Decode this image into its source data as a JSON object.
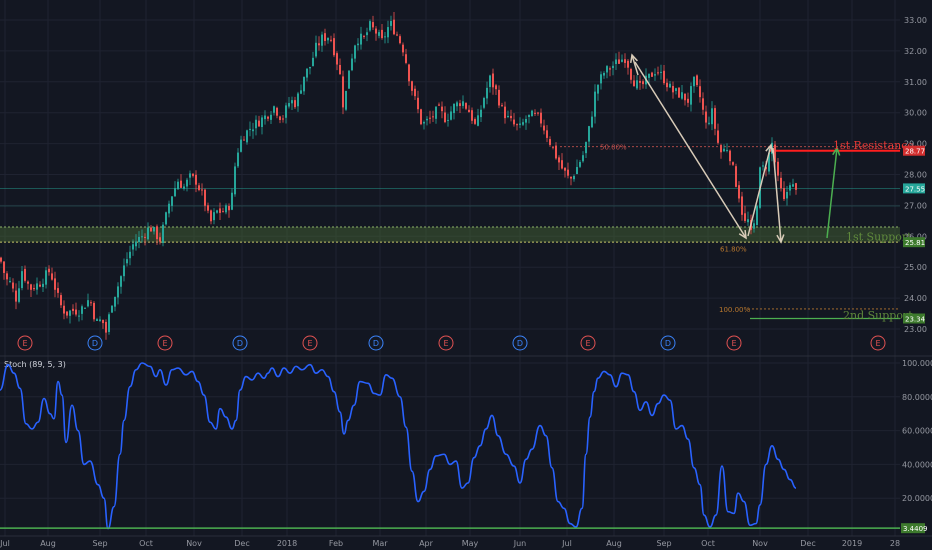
{
  "chart_data": [
    {
      "type": "candlestick",
      "ylim": [
        22.7,
        33.4
      ],
      "y_ticks": [
        "33.00",
        "32.00",
        "31.00",
        "30.00",
        "29.00",
        "28.00",
        "27.00",
        "26.00",
        "25.00",
        "24.00",
        "23.00"
      ],
      "x_labels": [
        "Jul",
        "Aug",
        "Sep",
        "Oct",
        "Nov",
        "Dec",
        "2018",
        "Feb",
        "Mar",
        "Apr",
        "May",
        "Jun",
        "Jul",
        "Aug",
        "Sep",
        "Oct",
        "Nov",
        "Dec",
        "2019",
        "28"
      ],
      "colors": {
        "up": "#26a69a",
        "down": "#ef5350",
        "background": "#131722",
        "grid": "#1f2331"
      },
      "price_anchors": [
        [
          0,
          25.3
        ],
        [
          6,
          24.6
        ],
        [
          10,
          24.5
        ],
        [
          16,
          24.0
        ],
        [
          22,
          24.9
        ],
        [
          30,
          24.3
        ],
        [
          40,
          24.5
        ],
        [
          50,
          24.9
        ],
        [
          60,
          23.8
        ],
        [
          66,
          23.5
        ],
        [
          72,
          23.6
        ],
        [
          80,
          23.6
        ],
        [
          90,
          24.0
        ],
        [
          96,
          23.2
        ],
        [
          102,
          23.3
        ],
        [
          106,
          22.9
        ],
        [
          112,
          23.9
        ],
        [
          118,
          24.4
        ],
        [
          126,
          25.2
        ],
        [
          134,
          25.8
        ],
        [
          142,
          26.0
        ],
        [
          150,
          26.3
        ],
        [
          160,
          25.9
        ],
        [
          165,
          26.5
        ],
        [
          170,
          27.2
        ],
        [
          178,
          27.8
        ],
        [
          184,
          27.6
        ],
        [
          190,
          27.9
        ],
        [
          196,
          27.8
        ],
        [
          204,
          27.2
        ],
        [
          210,
          26.4
        ],
        [
          216,
          26.8
        ],
        [
          222,
          26.8
        ],
        [
          228,
          26.9
        ],
        [
          232,
          27.3
        ],
        [
          236,
          28.6
        ],
        [
          242,
          29.2
        ],
        [
          250,
          29.5
        ],
        [
          258,
          29.7
        ],
        [
          266,
          29.9
        ],
        [
          274,
          30.2
        ],
        [
          282,
          29.8
        ],
        [
          290,
          30.4
        ],
        [
          296,
          30.3
        ],
        [
          304,
          31.2
        ],
        [
          310,
          31.5
        ],
        [
          316,
          32.1
        ],
        [
          322,
          32.4
        ],
        [
          330,
          32.5
        ],
        [
          336,
          31.8
        ],
        [
          340,
          31.2
        ],
        [
          344,
          30.0
        ],
        [
          348,
          31.3
        ],
        [
          356,
          32.4
        ],
        [
          364,
          32.4
        ],
        [
          370,
          32.8
        ],
        [
          376,
          32.6
        ],
        [
          382,
          32.3
        ],
        [
          390,
          32.9
        ],
        [
          396,
          32.6
        ],
        [
          404,
          32.0
        ],
        [
          410,
          31.0
        ],
        [
          416,
          30.3
        ],
        [
          422,
          29.6
        ],
        [
          430,
          29.8
        ],
        [
          438,
          30.1
        ],
        [
          446,
          29.8
        ],
        [
          454,
          30.2
        ],
        [
          462,
          30.4
        ],
        [
          470,
          30.0
        ],
        [
          476,
          29.5
        ],
        [
          484,
          30.5
        ],
        [
          490,
          31.1
        ],
        [
          496,
          30.7
        ],
        [
          502,
          30.1
        ],
        [
          508,
          29.8
        ],
        [
          514,
          29.6
        ],
        [
          520,
          29.5
        ],
        [
          526,
          29.8
        ],
        [
          532,
          29.9
        ],
        [
          540,
          29.8
        ],
        [
          548,
          29.2
        ],
        [
          556,
          28.6
        ],
        [
          562,
          28.2
        ],
        [
          570,
          27.8
        ],
        [
          578,
          28.3
        ],
        [
          584,
          28.7
        ],
        [
          590,
          29.6
        ],
        [
          596,
          30.8
        ],
        [
          604,
          31.3
        ],
        [
          612,
          31.5
        ],
        [
          620,
          31.7
        ],
        [
          626,
          31.8
        ],
        [
          632,
          31.1
        ],
        [
          640,
          30.8
        ],
        [
          648,
          31.1
        ],
        [
          656,
          31.4
        ],
        [
          664,
          31.1
        ],
        [
          672,
          30.7
        ],
        [
          680,
          30.6
        ],
        [
          688,
          30.4
        ],
        [
          694,
          31.0
        ],
        [
          700,
          30.5
        ],
        [
          706,
          29.6
        ],
        [
          712,
          30.0
        ],
        [
          720,
          28.7
        ],
        [
          728,
          28.9
        ],
        [
          734,
          28.0
        ],
        [
          740,
          27.2
        ],
        [
          744,
          26.4
        ],
        [
          748,
          26.5
        ],
        [
          752,
          25.9
        ],
        [
          756,
          26.8
        ],
        [
          760,
          28.1
        ],
        [
          766,
          28.3
        ],
        [
          772,
          29.0
        ],
        [
          778,
          27.8
        ],
        [
          784,
          27.1
        ],
        [
          790,
          27.8
        ],
        [
          796,
          27.4
        ]
      ],
      "stoch_ylim": [
        0,
        100
      ],
      "stoch_ticks": [
        "100.0000",
        "80.0000",
        "60.0000",
        "40.0000",
        "20.0000"
      ],
      "stoch_anchors": [
        [
          0,
          84
        ],
        [
          8,
          99
        ],
        [
          14,
          94
        ],
        [
          20,
          85
        ],
        [
          26,
          64
        ],
        [
          32,
          61
        ],
        [
          38,
          65
        ],
        [
          44,
          79
        ],
        [
          50,
          70
        ],
        [
          54,
          67
        ],
        [
          58,
          89
        ],
        [
          62,
          81
        ],
        [
          66,
          53
        ],
        [
          72,
          75
        ],
        [
          78,
          60
        ],
        [
          84,
          40
        ],
        [
          90,
          42
        ],
        [
          98,
          28
        ],
        [
          104,
          20
        ],
        [
          108,
          2
        ],
        [
          114,
          15
        ],
        [
          120,
          46
        ],
        [
          124,
          66
        ],
        [
          130,
          86
        ],
        [
          136,
          96
        ],
        [
          142,
          100
        ],
        [
          150,
          98
        ],
        [
          156,
          92
        ],
        [
          160,
          96
        ],
        [
          166,
          87
        ],
        [
          172,
          96
        ],
        [
          178,
          97
        ],
        [
          186,
          93
        ],
        [
          192,
          95
        ],
        [
          198,
          89
        ],
        [
          204,
          81
        ],
        [
          210,
          65
        ],
        [
          216,
          61
        ],
        [
          220,
          73
        ],
        [
          226,
          68
        ],
        [
          232,
          61
        ],
        [
          236,
          66
        ],
        [
          240,
          84
        ],
        [
          246,
          92
        ],
        [
          252,
          90
        ],
        [
          258,
          94
        ],
        [
          264,
          91
        ],
        [
          268,
          94
        ],
        [
          272,
          97
        ],
        [
          278,
          92
        ],
        [
          284,
          97
        ],
        [
          290,
          94
        ],
        [
          296,
          98
        ],
        [
          302,
          96
        ],
        [
          310,
          99
        ],
        [
          316,
          94
        ],
        [
          322,
          96
        ],
        [
          328,
          92
        ],
        [
          334,
          83
        ],
        [
          340,
          71
        ],
        [
          344,
          58
        ],
        [
          348,
          66
        ],
        [
          354,
          75
        ],
        [
          360,
          89
        ],
        [
          368,
          88
        ],
        [
          374,
          82
        ],
        [
          380,
          81
        ],
        [
          386,
          93
        ],
        [
          392,
          91
        ],
        [
          400,
          80
        ],
        [
          406,
          62
        ],
        [
          412,
          36
        ],
        [
          418,
          18
        ],
        [
          424,
          24
        ],
        [
          430,
          37
        ],
        [
          436,
          45
        ],
        [
          444,
          46
        ],
        [
          450,
          40
        ],
        [
          456,
          42
        ],
        [
          462,
          26
        ],
        [
          468,
          29
        ],
        [
          474,
          44
        ],
        [
          480,
          51
        ],
        [
          486,
          61
        ],
        [
          492,
          69
        ],
        [
          498,
          57
        ],
        [
          506,
          46
        ],
        [
          514,
          39
        ],
        [
          520,
          29
        ],
        [
          526,
          43
        ],
        [
          532,
          49
        ],
        [
          540,
          63
        ],
        [
          546,
          57
        ],
        [
          552,
          38
        ],
        [
          558,
          18
        ],
        [
          564,
          14
        ],
        [
          570,
          5
        ],
        [
          576,
          3
        ],
        [
          582,
          14
        ],
        [
          586,
          46
        ],
        [
          590,
          68
        ],
        [
          594,
          83
        ],
        [
          598,
          91
        ],
        [
          604,
          95
        ],
        [
          610,
          93
        ],
        [
          616,
          86
        ],
        [
          622,
          94
        ],
        [
          628,
          93
        ],
        [
          634,
          83
        ],
        [
          640,
          72
        ],
        [
          646,
          77
        ],
        [
          652,
          69
        ],
        [
          658,
          76
        ],
        [
          664,
          81
        ],
        [
          670,
          78
        ],
        [
          676,
          61
        ],
        [
          682,
          63
        ],
        [
          688,
          55
        ],
        [
          694,
          38
        ],
        [
          700,
          28
        ],
        [
          704,
          10
        ],
        [
          710,
          3
        ],
        [
          716,
          10
        ],
        [
          722,
          39
        ],
        [
          728,
          12
        ],
        [
          734,
          11
        ],
        [
          738,
          23
        ],
        [
          744,
          18
        ],
        [
          750,
          4
        ],
        [
          756,
          5
        ],
        [
          760,
          16
        ],
        [
          766,
          40
        ],
        [
          772,
          51
        ],
        [
          778,
          43
        ],
        [
          784,
          37
        ],
        [
          790,
          31
        ],
        [
          796,
          26
        ]
      ]
    }
  ],
  "annotations": {
    "first_resistance": "1st Resistance",
    "first_support": "1st Support",
    "second_support": "2nd Support",
    "fib_50": "50.00%",
    "fib_618": "61.80%",
    "fib_100": "100.00%"
  },
  "price_badges": {
    "resistance": "28.77",
    "current": "27.55",
    "support": "25.81",
    "second_support": "23.34"
  },
  "stoch_badge": "3.4409",
  "stoch_label": "Stoch (89, 5, 3)",
  "event_markers": [
    "E",
    "D",
    "E",
    "D",
    "E",
    "D",
    "E",
    "D",
    "E",
    "D",
    "E",
    "E"
  ]
}
